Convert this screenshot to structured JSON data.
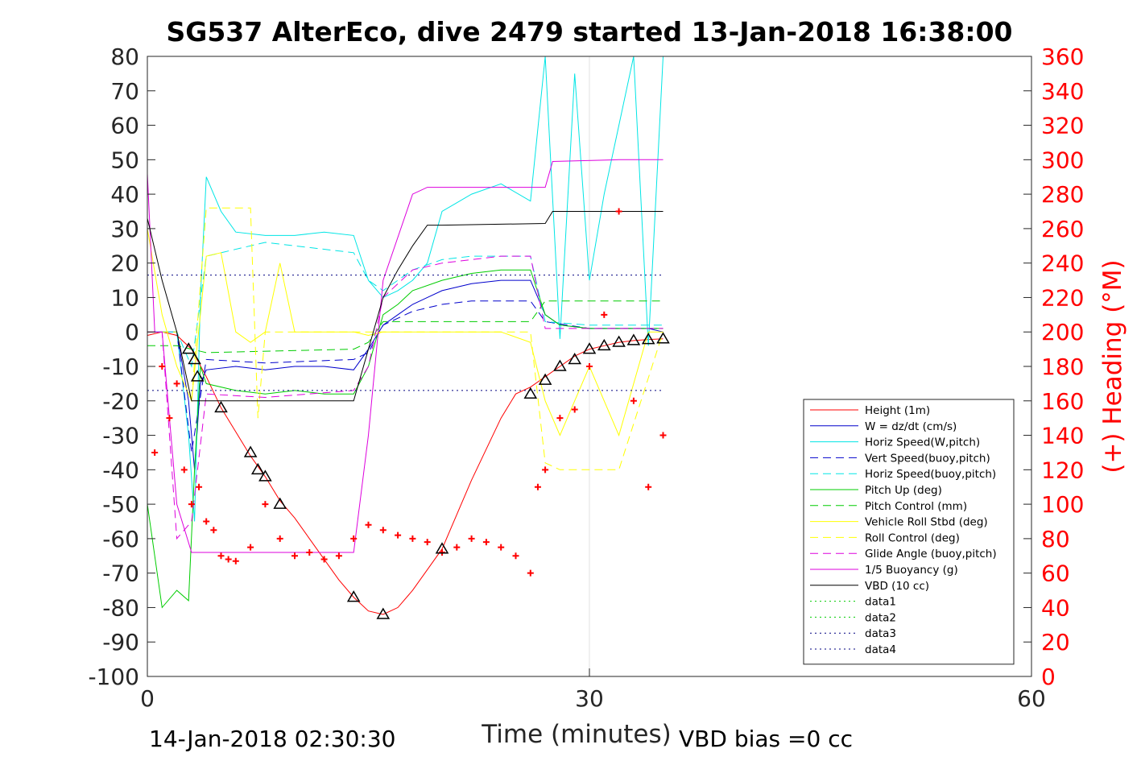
{
  "chart_data": {
    "type": "line",
    "title": "SG537 AlterEco, dive 2479 started 13-Jan-2018 16:38:00",
    "xlabel": "Time (minutes)",
    "ylabel_right": "(+) Heading (°M)",
    "footer_left": "14-Jan-2018 02:30:30",
    "footer_right": "VBD bias =0 cc",
    "xlim": [
      0,
      60
    ],
    "ylim": [
      -100,
      80
    ],
    "ylim_right": [
      0,
      360
    ],
    "x_ticks": [
      "0",
      "30",
      "60"
    ],
    "y_ticks": [
      "80",
      "70",
      "60",
      "50",
      "40",
      "30",
      "20",
      "10",
      "0",
      "-10",
      "-20",
      "-30",
      "-40",
      "-50",
      "-60",
      "-70",
      "-80",
      "-90",
      "-100"
    ],
    "y_ticks_right": [
      "360",
      "340",
      "320",
      "300",
      "280",
      "260",
      "240",
      "220",
      "200",
      "180",
      "160",
      "140",
      "120",
      "100",
      "80",
      "60",
      "40",
      "20",
      "0"
    ],
    "grid": "x-only",
    "legend_position": "bottom-right",
    "series": [
      {
        "name": "Height (1m)",
        "color": "#ff0000",
        "style": "solid",
        "x": [
          0,
          1,
          2,
          3,
          4,
          5,
          6,
          7,
          8,
          9,
          10,
          11,
          12,
          13,
          14,
          15,
          16,
          17,
          18,
          19,
          20,
          21,
          22,
          23,
          24,
          25,
          26,
          27,
          28,
          29,
          30,
          31,
          32,
          33,
          34,
          35
        ],
        "y": [
          -1,
          0,
          -1,
          -5,
          -13,
          -22,
          -29,
          -36,
          -42,
          -49,
          -54,
          -60,
          -66,
          -72,
          -77,
          -81,
          -82,
          -80,
          -75,
          -69,
          -63,
          -53,
          -43,
          -34,
          -25,
          -18,
          -16,
          -13,
          -10,
          -7,
          -5,
          -4,
          -3,
          -2.5,
          -2.2,
          -2
        ]
      },
      {
        "name": "W = dz/dt (cm/s)",
        "color": "#0000cc",
        "style": "solid",
        "x": [
          0,
          1,
          2,
          2.8,
          3.2,
          3.6,
          4,
          6,
          8,
          10,
          12,
          14,
          15,
          16,
          17,
          18,
          19,
          20,
          22,
          24,
          26,
          27,
          28,
          30,
          32,
          34,
          35
        ],
        "y": [
          0,
          0,
          0,
          -20,
          -40,
          -15,
          -11,
          -10,
          -11,
          -10,
          -10,
          -11,
          -5,
          2,
          5,
          8,
          10,
          12,
          14,
          15,
          15,
          5,
          2,
          1,
          1,
          1,
          0
        ]
      },
      {
        "name": "Horiz Speed(W,pitch)",
        "color": "#00e5e5",
        "style": "solid",
        "x": [
          0,
          1,
          2,
          2.8,
          3.2,
          3.6,
          4,
          5,
          6,
          8,
          10,
          12,
          14,
          15,
          16,
          17,
          18,
          19,
          20,
          22,
          24,
          26,
          27,
          28,
          29,
          30,
          31,
          32,
          33,
          34,
          35
        ],
        "y": [
          0,
          0,
          0,
          -30,
          -55,
          10,
          45,
          35,
          29,
          28,
          28,
          29,
          28,
          15,
          10,
          12,
          15,
          20,
          35,
          40,
          43,
          38,
          80,
          -2,
          75,
          15,
          40,
          60,
          80,
          -4,
          80
        ]
      },
      {
        "name": "Vert Speed(buoy,pitch)",
        "color": "#0000cc",
        "style": "dashed",
        "x": [
          0,
          2,
          3,
          4,
          8,
          14,
          15,
          16,
          18,
          20,
          22,
          24,
          26,
          27,
          30,
          35
        ],
        "y": [
          0,
          0,
          -35,
          -8,
          -9,
          -8,
          -6,
          2,
          6,
          8,
          9,
          9,
          9,
          3,
          1,
          1
        ]
      },
      {
        "name": "Horiz Speed(buoy,pitch)",
        "color": "#00e5e5",
        "style": "dashed",
        "x": [
          0,
          2,
          3,
          4,
          8,
          14,
          15,
          16,
          18,
          20,
          22,
          24,
          26,
          27,
          30,
          35
        ],
        "y": [
          0,
          0,
          -10,
          22,
          26,
          23,
          15,
          12,
          18,
          21,
          22,
          22,
          22,
          3,
          2,
          2
        ]
      },
      {
        "name": "Pitch Up (deg)",
        "color": "#00cc00",
        "style": "solid",
        "x": [
          0,
          1,
          2,
          2.8,
          3.2,
          3.6,
          4,
          6,
          8,
          10,
          12,
          14,
          15,
          16,
          17,
          18,
          20,
          22,
          24,
          26,
          27,
          28,
          30,
          35
        ],
        "y": [
          -50,
          -80,
          -75,
          -78,
          -40,
          -10,
          -15,
          -17,
          -18,
          -17,
          -18,
          -18,
          -10,
          5,
          8,
          12,
          15,
          17,
          18,
          18,
          5,
          2,
          1,
          1
        ]
      },
      {
        "name": "Pitch Control (mm)",
        "color": "#00cc00",
        "style": "dashed",
        "x": [
          0,
          2,
          3,
          4,
          14,
          15,
          16,
          26,
          27,
          35
        ],
        "y": [
          -4,
          -4,
          -5,
          -6,
          -5,
          -3,
          3,
          3,
          9,
          9
        ]
      },
      {
        "name": "Vehicle Roll Stbd (deg)",
        "color": "#ffff00",
        "style": "solid",
        "x": [
          0,
          1,
          2,
          3,
          4,
          5,
          6,
          7,
          8,
          9,
          10,
          12,
          14,
          15,
          16,
          18,
          20,
          22,
          24,
          26,
          27,
          28,
          30,
          32,
          34,
          35
        ],
        "y": [
          30,
          5,
          -10,
          -20,
          22,
          23,
          0,
          -3,
          0,
          20,
          0,
          0,
          0,
          -1,
          0,
          0,
          0,
          0,
          0,
          -3,
          -20,
          -30,
          -10,
          -30,
          0,
          0
        ]
      },
      {
        "name": "Roll Control (deg)",
        "color": "#ffff00",
        "style": "dashed",
        "x": [
          0,
          2,
          3,
          4,
          7,
          7.5,
          8,
          12,
          26,
          27,
          28,
          30,
          32,
          35
        ],
        "y": [
          0,
          0,
          -20,
          36,
          36,
          -25,
          0,
          0,
          0,
          -38,
          -40,
          -40,
          -40,
          0
        ]
      },
      {
        "name": "Glide Angle (buoy,pitch)",
        "color": "#dd00dd",
        "style": "dashed",
        "x": [
          0,
          1,
          2,
          3,
          4,
          8,
          14,
          15,
          16,
          18,
          20,
          22,
          24,
          26,
          27,
          35
        ],
        "y": [
          0,
          0,
          -60,
          -55,
          -18,
          -19,
          -17,
          -10,
          10,
          18,
          20,
          21,
          22,
          22,
          1,
          1
        ]
      },
      {
        "name": "1/5 Buoyancy (g)",
        "color": "#dd00dd",
        "style": "solid",
        "x": [
          0,
          0.5,
          1,
          2,
          3,
          14,
          15,
          16,
          18,
          19,
          20,
          27,
          27.5,
          32,
          35
        ],
        "y": [
          46,
          0,
          0,
          -50,
          -64,
          -64,
          -30,
          15,
          40,
          42,
          42,
          42,
          49.5,
          50,
          50
        ]
      },
      {
        "name": "VBD (10 cc)",
        "color": "#000000",
        "style": "solid",
        "x": [
          0,
          1,
          2,
          3,
          14,
          15,
          16,
          17,
          18,
          19,
          20,
          27,
          27.5,
          35
        ],
        "y": [
          33,
          15,
          0,
          -20,
          -20,
          -5,
          10,
          18,
          25,
          31,
          31,
          31.5,
          35,
          35
        ]
      },
      {
        "name": "data1",
        "color": "#00cc00",
        "style": "dotted",
        "x": [],
        "y": []
      },
      {
        "name": "data2",
        "color": "#00cc00",
        "style": "dotted",
        "x": [],
        "y": []
      },
      {
        "name": "data3",
        "color": "#000080",
        "style": "dotted",
        "x": [
          0,
          35
        ],
        "y": [
          16.5,
          16.5
        ]
      },
      {
        "name": "data4",
        "color": "#000080",
        "style": "dotted",
        "x": [
          0,
          35
        ],
        "y": [
          -17,
          -17
        ]
      }
    ],
    "heading_points": {
      "color": "#ff0000",
      "axis": "right",
      "x": [
        0.5,
        1,
        1.5,
        2,
        2.5,
        3,
        3.5,
        4,
        4.5,
        5,
        5.5,
        6,
        7,
        8,
        9,
        10,
        11,
        12,
        13,
        14,
        15,
        16,
        17,
        18,
        19,
        20,
        21,
        22,
        23,
        24,
        25,
        26,
        26.5,
        27,
        28,
        29,
        30,
        31,
        32,
        33,
        34,
        35
      ],
      "y": [
        130,
        180,
        150,
        170,
        120,
        100,
        110,
        90,
        85,
        70,
        68,
        67,
        75,
        100,
        80,
        70,
        72,
        68,
        70,
        80,
        88,
        85,
        82,
        80,
        78,
        72,
        75,
        80,
        78,
        75,
        70,
        60,
        110,
        120,
        150,
        155,
        180,
        210,
        270,
        160,
        110,
        140
      ]
    },
    "height_markers": {
      "color": "#000000",
      "x": [
        2.8,
        3.2,
        3.4,
        5,
        7,
        7.5,
        8,
        9,
        14,
        16,
        20,
        26,
        27,
        28,
        29,
        30,
        31,
        32,
        33,
        34,
        35
      ],
      "y": [
        -5,
        -8,
        -13,
        -22,
        -35,
        -40,
        -42,
        -50,
        -77,
        -82,
        -63,
        -18,
        -14,
        -10,
        -8,
        -5,
        -4,
        -3,
        -2.5,
        -2.2,
        -2
      ]
    }
  }
}
